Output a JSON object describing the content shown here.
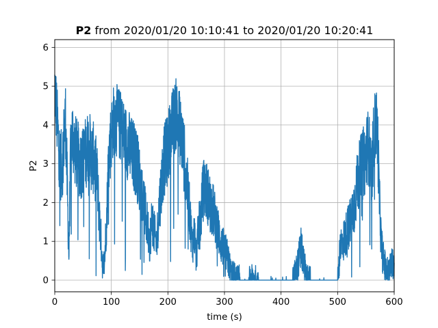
{
  "chart_data": {
    "type": "line",
    "title_bold": "P2",
    "title_rest": " from 2020/01/20 10:10:41 to 2020/01/20 10:20:41",
    "xlabel": "time (s)",
    "ylabel": "P2",
    "xlim": [
      0,
      600
    ],
    "ylim": [
      -0.3,
      6.2
    ],
    "xticks": [
      "0",
      "100",
      "200",
      "300",
      "400",
      "500",
      "600"
    ],
    "yticks": [
      "0",
      "1",
      "2",
      "3",
      "4",
      "5",
      "6"
    ],
    "grid": true,
    "line_color": "#1f77b4",
    "series": [
      {
        "x": [
          0,
          2,
          4,
          6,
          8,
          10,
          13,
          16,
          19,
          22,
          25,
          28,
          31,
          35,
          40,
          45,
          50,
          55,
          60,
          65,
          70,
          75,
          78,
          82,
          85,
          88,
          92,
          95,
          98,
          102,
          106,
          110,
          115,
          120,
          125,
          130,
          135,
          140,
          145,
          150,
          155,
          160,
          165,
          168,
          172,
          176,
          180,
          184,
          188,
          192,
          196,
          200,
          205,
          210,
          215,
          220,
          225,
          230,
          235,
          240,
          243,
          247,
          250,
          254,
          258,
          262,
          266,
          270,
          275,
          280,
          285,
          290,
          295,
          300,
          305,
          310,
          313,
          316,
          320,
          325,
          330,
          340,
          350,
          360,
          370,
          380,
          400,
          420,
          428,
          432,
          435,
          438,
          442,
          447,
          455,
          470,
          485,
          500,
          503,
          506,
          510,
          515,
          520,
          525,
          530,
          535,
          540,
          545,
          550,
          553,
          556,
          560,
          564,
          568,
          571,
          574,
          577,
          580,
          585,
          590,
          595,
          600
        ],
        "y": [
          5.0,
          4.6,
          4.1,
          3.7,
          3.3,
          3.0,
          2.9,
          3.6,
          4.2,
          2.5,
          0.6,
          3.2,
          3.8,
          3.4,
          3.2,
          3.0,
          3.1,
          3.3,
          3.5,
          3.2,
          3.1,
          2.6,
          1.8,
          1.0,
          0.3,
          0.5,
          1.7,
          3.1,
          3.5,
          4.0,
          4.2,
          4.1,
          4.0,
          3.8,
          3.6,
          3.5,
          3.3,
          3.2,
          3.0,
          2.6,
          2.2,
          1.7,
          1.3,
          1.0,
          1.6,
          1.2,
          0.9,
          1.8,
          2.4,
          3.0,
          3.2,
          3.4,
          3.8,
          4.1,
          4.3,
          4.0,
          3.6,
          3.0,
          2.3,
          1.5,
          0.9,
          1.2,
          0.6,
          1.3,
          1.6,
          2.3,
          2.4,
          2.2,
          2.0,
          1.8,
          1.5,
          1.2,
          0.9,
          0.8,
          0.6,
          0.3,
          0.1,
          0.15,
          0.05,
          0.05,
          0.0,
          0.0,
          0.05,
          0.02,
          0.0,
          0.0,
          0.0,
          0.0,
          0.3,
          0.6,
          0.9,
          0.6,
          0.3,
          0.05,
          0.0,
          0.0,
          0.0,
          0.0,
          0.5,
          0.9,
          1.0,
          1.2,
          1.4,
          1.6,
          2.0,
          2.5,
          2.8,
          3.0,
          3.2,
          3.5,
          3.3,
          2.5,
          3.8,
          4.1,
          3.6,
          2.0,
          1.0,
          0.6,
          0.3,
          0.2,
          0.4,
          0.5
        ]
      }
    ]
  }
}
